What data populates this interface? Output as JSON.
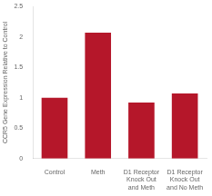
{
  "chart_data": {
    "type": "bar",
    "categories": [
      "Control",
      "Meth",
      "D1 Receptor\nKnock Out\nand Meth",
      "D1 Receptor\nKnock Out\nand No Meth"
    ],
    "values": [
      1.0,
      2.07,
      0.92,
      1.07
    ],
    "color": "#b5172a",
    "ylabel": "CCR5 Gene Expression Relative to Control",
    "ylim": [
      0,
      2.5
    ],
    "yticks": [
      0,
      0.5,
      1,
      1.5,
      2,
      2.5
    ],
    "grid": false
  }
}
